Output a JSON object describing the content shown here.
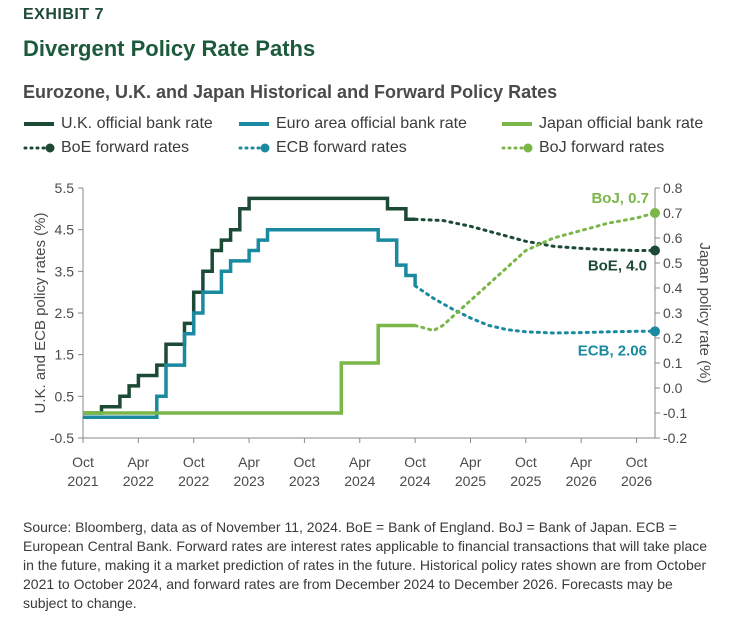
{
  "header": {
    "exhibit": "EXHIBIT 7",
    "title": "Divergent Policy Rate Paths",
    "subtitle": "Eurozone, U.K. and Japan Historical and Forward Policy Rates"
  },
  "colors": {
    "uk": "#1d4a34",
    "ecb": "#1a8aa0",
    "japan": "#7ab648"
  },
  "chart_data": {
    "type": "line",
    "x_ticks": [
      {
        "month": 0,
        "label": [
          "Oct",
          "2021"
        ]
      },
      {
        "month": 6,
        "label": [
          "Apr",
          "2022"
        ]
      },
      {
        "month": 12,
        "label": [
          "Oct",
          "2022"
        ]
      },
      {
        "month": 18,
        "label": [
          "Apr",
          "2023"
        ]
      },
      {
        "month": 24,
        "label": [
          "Oct",
          "2023"
        ]
      },
      {
        "month": 30,
        "label": [
          "Apr",
          "2024"
        ]
      },
      {
        "month": 36,
        "label": [
          "Oct",
          "2024"
        ]
      },
      {
        "month": 42,
        "label": [
          "Apr",
          "2025"
        ]
      },
      {
        "month": 48,
        "label": [
          "Oct",
          "2025"
        ]
      },
      {
        "month": 54,
        "label": [
          "Apr",
          "2026"
        ]
      },
      {
        "month": 60,
        "label": [
          "Oct",
          "2026"
        ]
      }
    ],
    "xlim": [
      0,
      62
    ],
    "y_left": {
      "label": "U.K. and ECB policy rates (%)",
      "lim": [
        -0.5,
        5.5
      ],
      "ticks": [
        "5.5",
        "4.5",
        "3.5",
        "2.5",
        "1.5",
        "0.5",
        "-0.5"
      ]
    },
    "y_right": {
      "label": "Japan policy rate (%)",
      "lim": [
        -0.2,
        0.8
      ],
      "ticks": [
        "0.8",
        "0.7",
        "0.6",
        "0.5",
        "0.4",
        "0.3",
        "0.2",
        "0.1",
        "0.0",
        "-0.1",
        "-0.2"
      ]
    },
    "legend": [
      {
        "name": "U.K. official bank rate",
        "style": "solid",
        "color_key": "uk"
      },
      {
        "name": "Euro area official bank rate",
        "style": "solid",
        "color_key": "ecb"
      },
      {
        "name": "Japan official bank rate",
        "style": "solid",
        "color_key": "japan"
      },
      {
        "name": "BoE forward rates",
        "style": "dotted",
        "color_key": "uk"
      },
      {
        "name": "ECB forward rates",
        "style": "dotted",
        "color_key": "ecb"
      },
      {
        "name": "BoJ forward rates",
        "style": "dotted",
        "color_key": "japan"
      }
    ],
    "series": [
      {
        "name": "U.K. official bank rate",
        "axis": "left",
        "style": "solid",
        "color_key": "uk",
        "points": [
          [
            0,
            0.1
          ],
          [
            2,
            0.1
          ],
          [
            2,
            0.25
          ],
          [
            4,
            0.25
          ],
          [
            4,
            0.5
          ],
          [
            5,
            0.5
          ],
          [
            5,
            0.75
          ],
          [
            6,
            0.75
          ],
          [
            6,
            1.0
          ],
          [
            8,
            1.0
          ],
          [
            8,
            1.25
          ],
          [
            9,
            1.25
          ],
          [
            9,
            1.75
          ],
          [
            11,
            1.75
          ],
          [
            11,
            2.25
          ],
          [
            12,
            2.25
          ],
          [
            12,
            3.0
          ],
          [
            13,
            3.0
          ],
          [
            13,
            3.5
          ],
          [
            14,
            3.5
          ],
          [
            14,
            4.0
          ],
          [
            15,
            4.0
          ],
          [
            15,
            4.25
          ],
          [
            16,
            4.25
          ],
          [
            16,
            4.5
          ],
          [
            17,
            4.5
          ],
          [
            17,
            5.0
          ],
          [
            18,
            5.0
          ],
          [
            18,
            5.25
          ],
          [
            33,
            5.25
          ],
          [
            33,
            5.0
          ],
          [
            35,
            5.0
          ],
          [
            35,
            4.75
          ],
          [
            36,
            4.75
          ]
        ]
      },
      {
        "name": "Euro area official bank rate",
        "axis": "left",
        "style": "solid",
        "color_key": "ecb",
        "points": [
          [
            0,
            0.0
          ],
          [
            8,
            0.0
          ],
          [
            8,
            0.5
          ],
          [
            9,
            0.5
          ],
          [
            9,
            1.25
          ],
          [
            11,
            1.25
          ],
          [
            11,
            2.0
          ],
          [
            12,
            2.0
          ],
          [
            12,
            2.5
          ],
          [
            13,
            2.5
          ],
          [
            13,
            3.0
          ],
          [
            15,
            3.0
          ],
          [
            15,
            3.5
          ],
          [
            16,
            3.5
          ],
          [
            16,
            3.75
          ],
          [
            18,
            3.75
          ],
          [
            18,
            4.0
          ],
          [
            19,
            4.0
          ],
          [
            19,
            4.25
          ],
          [
            20,
            4.25
          ],
          [
            20,
            4.5
          ],
          [
            32,
            4.5
          ],
          [
            32,
            4.25
          ],
          [
            34,
            4.25
          ],
          [
            34,
            3.65
          ],
          [
            35,
            3.65
          ],
          [
            35,
            3.4
          ],
          [
            36,
            3.4
          ],
          [
            36,
            3.15
          ]
        ]
      },
      {
        "name": "Japan official bank rate",
        "axis": "right",
        "style": "solid",
        "color_key": "japan",
        "points": [
          [
            0,
            -0.1
          ],
          [
            28,
            -0.1
          ],
          [
            28,
            0.1
          ],
          [
            32,
            0.1
          ],
          [
            32,
            0.25
          ],
          [
            36,
            0.25
          ]
        ]
      },
      {
        "name": "BoE forward rates",
        "axis": "left",
        "style": "dotted",
        "color_key": "uk",
        "points": [
          [
            36,
            4.75
          ],
          [
            39,
            4.72
          ],
          [
            42,
            4.58
          ],
          [
            45,
            4.4
          ],
          [
            48,
            4.22
          ],
          [
            51,
            4.1
          ],
          [
            54,
            4.05
          ],
          [
            57,
            4.02
          ],
          [
            60,
            4.0
          ],
          [
            62,
            4.0
          ]
        ],
        "end_label": "BoE, 4.0"
      },
      {
        "name": "ECB forward rates",
        "axis": "left",
        "style": "dotted",
        "color_key": "ecb",
        "points": [
          [
            36,
            3.15
          ],
          [
            38,
            2.85
          ],
          [
            40,
            2.6
          ],
          [
            42,
            2.38
          ],
          [
            44,
            2.2
          ],
          [
            46,
            2.1
          ],
          [
            48,
            2.05
          ],
          [
            51,
            2.02
          ],
          [
            54,
            2.03
          ],
          [
            57,
            2.05
          ],
          [
            60,
            2.06
          ],
          [
            62,
            2.06
          ]
        ],
        "end_label": "ECB, 2.06"
      },
      {
        "name": "BoJ forward rates",
        "axis": "right",
        "style": "dotted",
        "color_key": "japan",
        "points": [
          [
            36,
            0.25
          ],
          [
            38,
            0.23
          ],
          [
            39,
            0.25
          ],
          [
            42,
            0.35
          ],
          [
            45,
            0.45
          ],
          [
            48,
            0.55
          ],
          [
            51,
            0.6
          ],
          [
            54,
            0.63
          ],
          [
            57,
            0.66
          ],
          [
            60,
            0.68
          ],
          [
            62,
            0.7
          ]
        ],
        "end_label": "BoJ, 0.7"
      }
    ]
  },
  "source": {
    "text": "Source: Bloomberg, data as of November 11, 2024. BoE = Bank of England. BoJ = Bank of Japan. ECB = European Central Bank. Forward rates are interest rates applicable to financial transactions that will take place in the future, making it a market prediction of rates in the future. Historical policy rates shown are from October 2021 to October 2024, and forward rates are from December 2024 to December 2026. Forecasts may be subject to change."
  }
}
